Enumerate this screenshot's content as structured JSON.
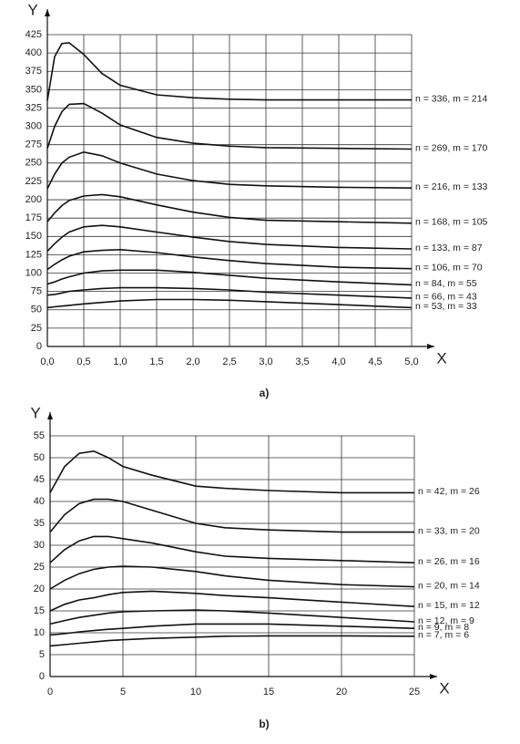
{
  "chart_data": [
    {
      "type": "line",
      "caption": "a)",
      "xlabel": "X",
      "ylabel": "Y",
      "grid": true,
      "xlim": [
        0,
        5
      ],
      "ylim": [
        0,
        425
      ],
      "xticks": [
        {
          "value": 0,
          "label": "0,0"
        },
        {
          "value": 0.5,
          "label": "0,5"
        },
        {
          "value": 1,
          "label": "1,0"
        },
        {
          "value": 1.5,
          "label": "1,5"
        },
        {
          "value": 2,
          "label": "2,0"
        },
        {
          "value": 2.5,
          "label": "2,5"
        },
        {
          "value": 3,
          "label": "3,0"
        },
        {
          "value": 3.5,
          "label": "3,5"
        },
        {
          "value": 4,
          "label": "4,0"
        },
        {
          "value": 4.5,
          "label": "4,5"
        },
        {
          "value": 5,
          "label": "5,0"
        }
      ],
      "yticks": [
        0,
        25,
        50,
        75,
        100,
        125,
        150,
        175,
        200,
        225,
        250,
        275,
        300,
        325,
        350,
        375,
        400,
        425
      ],
      "x": [
        0,
        0.1,
        0.2,
        0.3,
        0.5,
        0.75,
        1,
        1.5,
        2,
        2.5,
        3,
        4,
        5
      ],
      "series": [
        {
          "name": "n = 336, m = 214",
          "color": "#111111",
          "values": [
            335,
            395,
            413,
            414,
            398,
            372,
            356,
            343,
            339,
            337,
            336,
            336,
            336
          ]
        },
        {
          "name": "n = 269, m = 170",
          "color": "#111111",
          "values": [
            270,
            300,
            320,
            330,
            331,
            318,
            302,
            285,
            277,
            273,
            271,
            270,
            269
          ]
        },
        {
          "name": "n = 216, m = 133",
          "color": "#111111",
          "values": [
            215,
            235,
            250,
            258,
            265,
            260,
            250,
            235,
            226,
            221,
            219,
            217,
            216
          ]
        },
        {
          "name": "n = 168, m = 105",
          "color": "#111111",
          "values": [
            170,
            182,
            192,
            199,
            205,
            207,
            204,
            193,
            183,
            176,
            172,
            170,
            168
          ]
        },
        {
          "name": "n = 133, m = 87",
          "color": "#111111",
          "values": [
            130,
            140,
            149,
            156,
            163,
            165,
            163,
            156,
            149,
            143,
            139,
            135,
            133
          ]
        },
        {
          "name": "n = 106, m = 70",
          "color": "#111111",
          "values": [
            105,
            112,
            118,
            123,
            129,
            131,
            132,
            128,
            122,
            117,
            113,
            108,
            106
          ]
        },
        {
          "name": "n = 84, m = 55",
          "color": "#111111",
          "values": [
            85,
            88,
            92,
            95,
            100,
            103,
            104,
            104,
            101,
            97,
            93,
            88,
            84
          ]
        },
        {
          "name": "n = 66, m = 43",
          "color": "#111111",
          "values": [
            70,
            71,
            73,
            75,
            77,
            79,
            80,
            80,
            79,
            77,
            74,
            70,
            66
          ]
        },
        {
          "name": "n = 53, m = 33",
          "color": "#111111",
          "values": [
            53,
            54,
            55,
            56,
            58,
            60,
            62,
            64,
            64,
            63,
            61,
            57,
            53
          ]
        }
      ]
    },
    {
      "type": "line",
      "caption": "b)",
      "xlabel": "X",
      "ylabel": "Y",
      "grid": true,
      "xlim": [
        0,
        25
      ],
      "ylim": [
        0,
        55
      ],
      "xticks": [
        0,
        5,
        10,
        15,
        20,
        25
      ],
      "yticks": [
        0,
        5,
        10,
        15,
        20,
        25,
        30,
        35,
        40,
        45,
        50,
        55
      ],
      "x": [
        0,
        1,
        2,
        3,
        4,
        5,
        7,
        10,
        12,
        15,
        20,
        25
      ],
      "series": [
        {
          "name": "n = 42, m = 26",
          "color": "#111111",
          "values": [
            42,
            48,
            51,
            51.5,
            50,
            48,
            46,
            43.5,
            43,
            42.5,
            42,
            42
          ]
        },
        {
          "name": "n = 33, m = 20",
          "color": "#111111",
          "values": [
            33,
            37,
            39.5,
            40.5,
            40.5,
            40,
            38,
            35,
            34,
            33.5,
            33,
            33
          ]
        },
        {
          "name": "n = 26, m = 16",
          "color": "#111111",
          "values": [
            26,
            29,
            31,
            32,
            32,
            31.5,
            30.5,
            28.5,
            27.5,
            27,
            26.5,
            26
          ]
        },
        {
          "name": "n = 20, m = 14",
          "color": "#111111",
          "values": [
            20,
            22,
            23.5,
            24.5,
            25,
            25.2,
            25,
            24,
            23,
            22,
            21,
            20.5
          ]
        },
        {
          "name": "n = 15, m = 12",
          "color": "#111111",
          "values": [
            15,
            16.5,
            17.5,
            18,
            18.7,
            19.2,
            19.5,
            19,
            18.5,
            18,
            17,
            16
          ]
        },
        {
          "name": "n = 12, m = 9",
          "color": "#111111",
          "values": [
            12,
            12.8,
            13.5,
            14,
            14.5,
            14.8,
            15,
            15.2,
            15,
            14.5,
            13.5,
            12.5
          ]
        },
        {
          "name": "n = 9, m = 8",
          "color": "#111111",
          "values": [
            9.5,
            9.8,
            10.2,
            10.5,
            10.8,
            11,
            11.5,
            12,
            12,
            12,
            11.5,
            11
          ]
        },
        {
          "name": "n = 7, m = 6",
          "color": "#111111",
          "values": [
            7,
            7.3,
            7.6,
            7.9,
            8.2,
            8.4,
            8.7,
            9,
            9.2,
            9.3,
            9.3,
            9.2
          ]
        }
      ]
    }
  ]
}
